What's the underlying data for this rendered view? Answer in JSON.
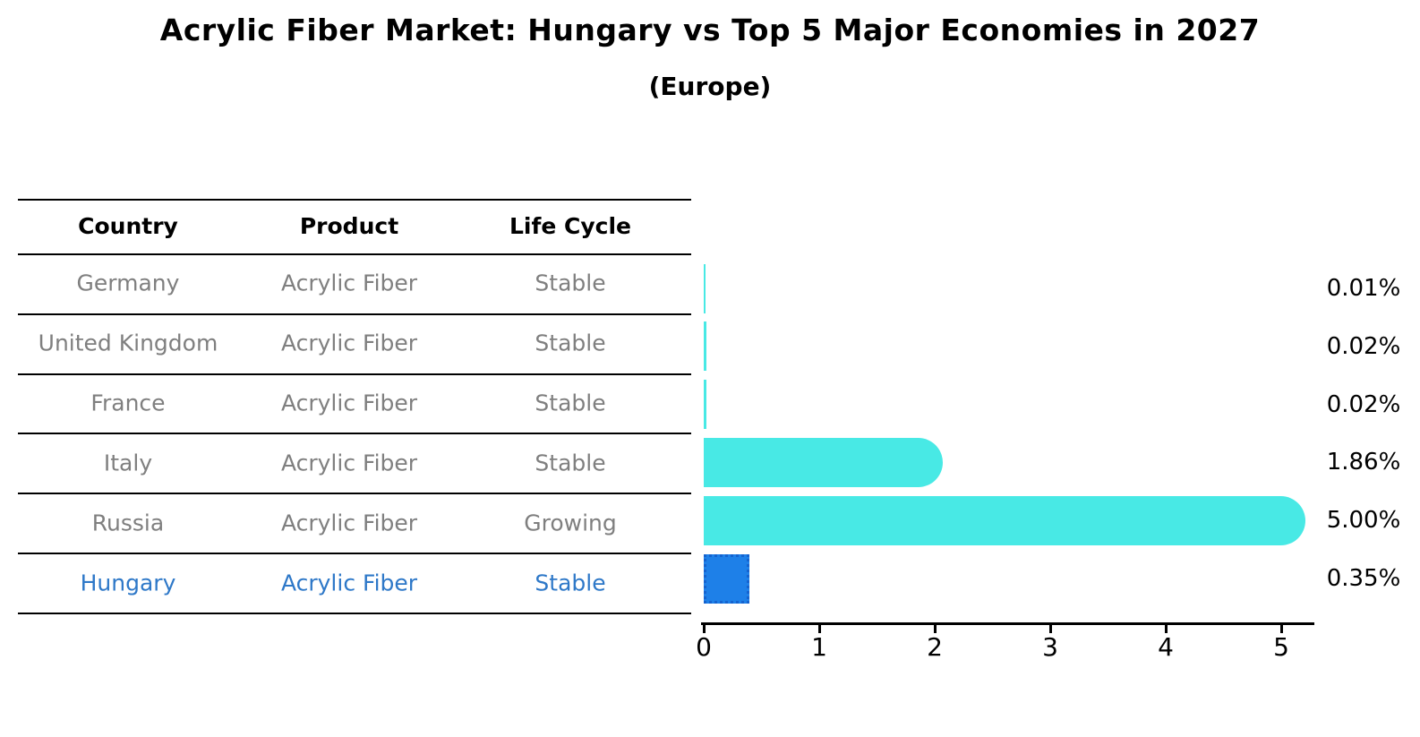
{
  "title": "Acrylic Fiber Market: Hungary vs Top 5 Major Economies in 2027",
  "subtitle": "(Europe)",
  "table": {
    "headers": [
      "Country",
      "Product",
      "Life Cycle"
    ]
  },
  "chart_data": {
    "type": "bar",
    "orientation": "horizontal",
    "title": "Acrylic Fiber Market: Hungary vs Top 5 Major Economies in 2027",
    "subtitle": "(Europe)",
    "xlabel": "",
    "ylabel": "",
    "xlim": [
      0,
      5.35
    ],
    "x_ticks": [
      "0",
      "1",
      "2",
      "3",
      "4",
      "5"
    ],
    "grid": false,
    "legend": false,
    "rows": [
      {
        "country": "Germany",
        "product": "Acrylic Fiber",
        "life_cycle": "Stable",
        "value": 0.01,
        "value_label": "0.01%",
        "highlight": false
      },
      {
        "country": "United Kingdom",
        "product": "Acrylic Fiber",
        "life_cycle": "Stable",
        "value": 0.02,
        "value_label": "0.02%",
        "highlight": false
      },
      {
        "country": "France",
        "product": "Acrylic Fiber",
        "life_cycle": "Stable",
        "value": 0.02,
        "value_label": "0.02%",
        "highlight": false
      },
      {
        "country": "Italy",
        "product": "Acrylic Fiber",
        "life_cycle": "Stable",
        "value": 1.86,
        "value_label": "1.86%",
        "highlight": false
      },
      {
        "country": "Russia",
        "product": "Acrylic Fiber",
        "life_cycle": "Growing",
        "value": 5.0,
        "value_label": "5.00%",
        "highlight": false
      },
      {
        "country": "Hungary",
        "product": "Acrylic Fiber",
        "life_cycle": "Stable",
        "value": 0.35,
        "value_label": "0.35%",
        "highlight": true
      }
    ],
    "colors": {
      "bar": "#48E9E5",
      "highlight_bar_fill": "#1E80E8",
      "highlight_bar_border": "#1563CF",
      "highlight_text": "#2E78C8",
      "row_text": "#7F7F7F",
      "header_text": "#000000",
      "axis": "#000000",
      "value_label_text": "#000000",
      "background": "#FFFFFF"
    }
  }
}
